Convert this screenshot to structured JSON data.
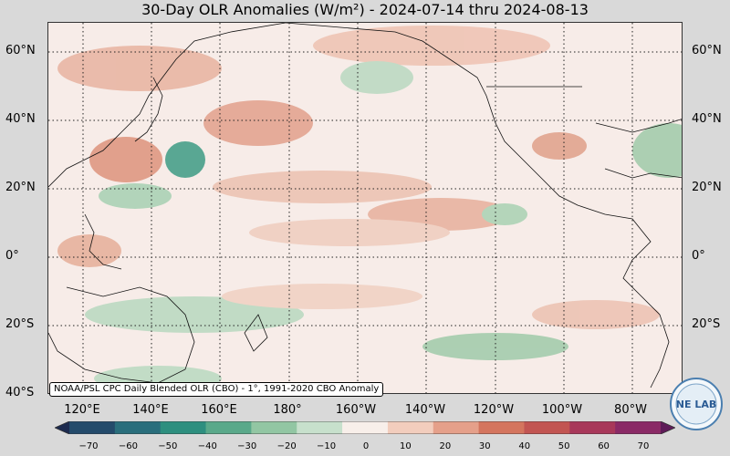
{
  "title": "30-Day OLR Anomalies (W/m²) - 2024-07-14 thru 2024-08-13",
  "map": {
    "lat_labels": [
      "60°N",
      "40°N",
      "20°N",
      "0°",
      "20°S",
      "40°S"
    ],
    "lon_labels": [
      "120°E",
      "140°E",
      "160°E",
      "180°",
      "160°W",
      "140°W",
      "120°W",
      "100°W",
      "80°W"
    ],
    "credit": "NOAA/PSL CPC Daily Blended OLR (CBO) - 1°, 1991-2020 CBO Anomaly"
  },
  "colorbar": {
    "ticks": [
      "−70",
      "−60",
      "−50",
      "−40",
      "−30",
      "−20",
      "−10",
      "0",
      "10",
      "20",
      "30",
      "40",
      "50",
      "60",
      "70"
    ],
    "colors": [
      "#1c2a4e",
      "#244b6b",
      "#2a6e7c",
      "#2e8f7f",
      "#5aa98a",
      "#92c6a3",
      "#c7e0cc",
      "#f8efea",
      "#f2cdbd",
      "#e5a08a",
      "#d4755e",
      "#c25552",
      "#a8385a",
      "#8a2a66",
      "#5e1b58"
    ]
  },
  "logo": {
    "text": "NE LAB",
    "icon": "noaa-psl-logo-icon"
  }
}
